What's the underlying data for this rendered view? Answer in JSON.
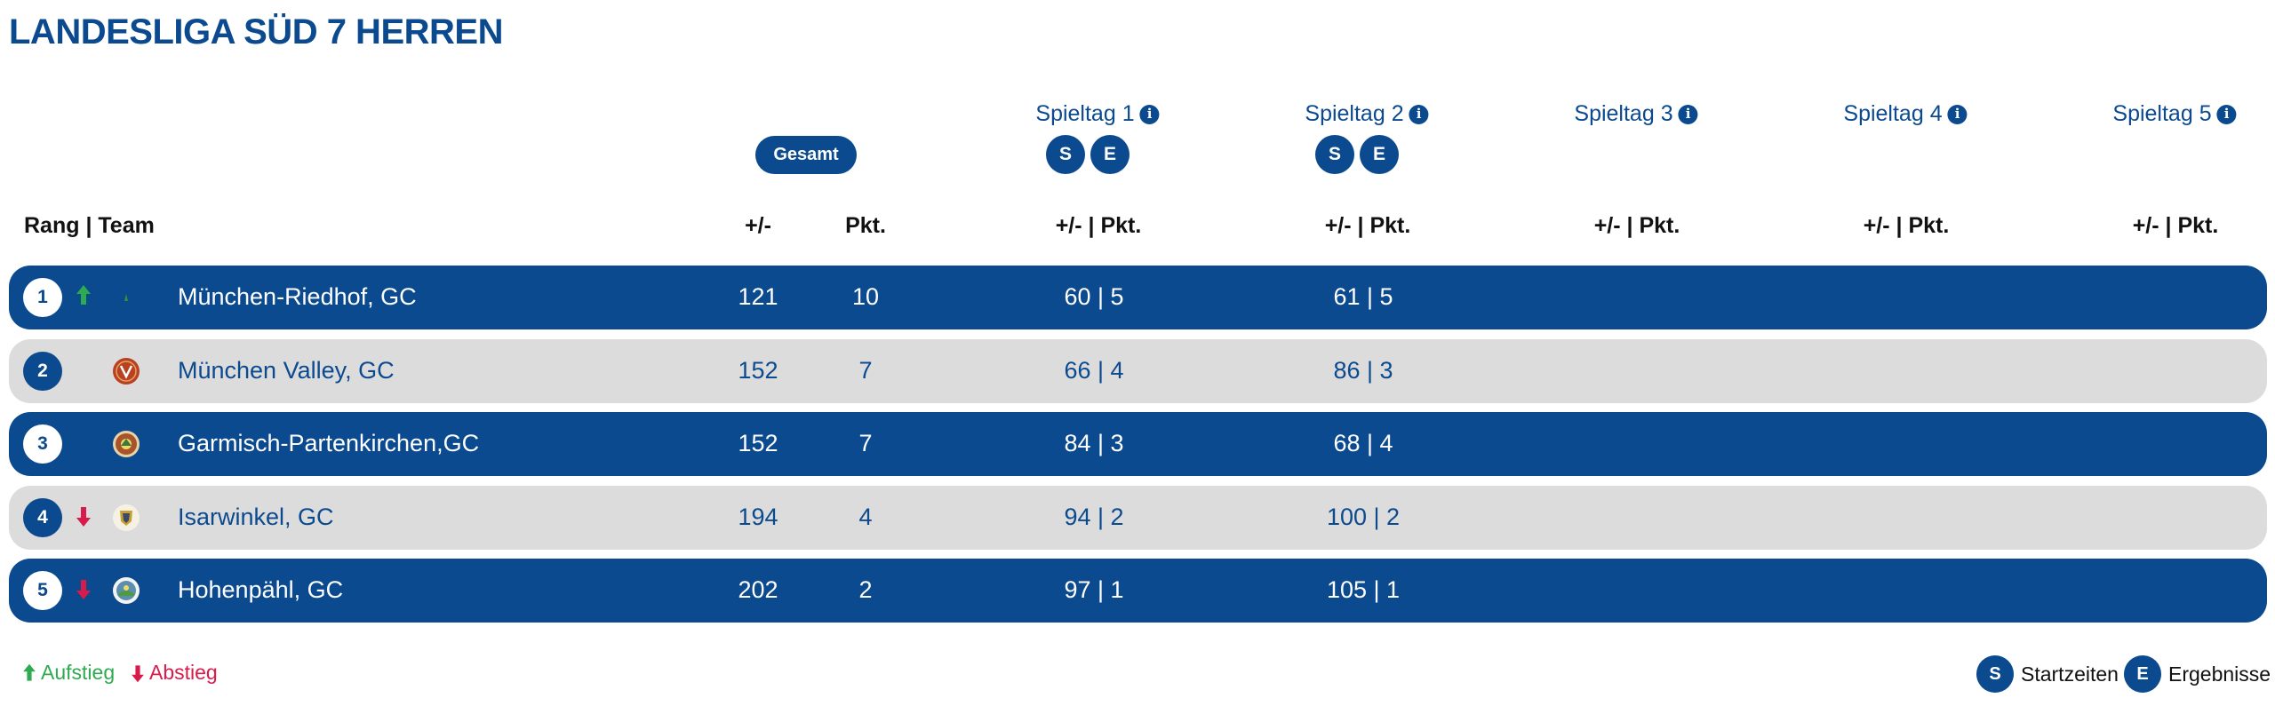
{
  "page": {
    "title": "LANDESLIGA SÜD 7 HERREN"
  },
  "matchdays": [
    {
      "label": "Spieltag 1",
      "has_buttons": true
    },
    {
      "label": "Spieltag 2",
      "has_buttons": true
    },
    {
      "label": "Spieltag 3",
      "has_buttons": false
    },
    {
      "label": "Spieltag 4",
      "has_buttons": false
    },
    {
      "label": "Spieltag 5",
      "has_buttons": false
    }
  ],
  "buttons": {
    "gesamt": "Gesamt",
    "start": "S",
    "results": "E",
    "info": "i"
  },
  "columns": {
    "rank_team": "Rang | Team",
    "diff": "+/-",
    "points": "Pkt.",
    "matchday": "+/- | Pkt."
  },
  "rows": [
    {
      "rank": "1",
      "trend": "up",
      "team": "München-Riedhof, GC",
      "diff": "121",
      "points": "10",
      "md1": "60 | 5",
      "md2": "61 | 5",
      "logo_color": "#3a8f3f"
    },
    {
      "rank": "2",
      "trend": "none",
      "team": "München Valley, GC",
      "diff": "152",
      "points": "7",
      "md1": "66 | 4",
      "md2": "86 | 3",
      "logo_color": "#b8421f"
    },
    {
      "rank": "3",
      "trend": "none",
      "team": "Garmisch-Partenkirchen,GC",
      "diff": "152",
      "points": "7",
      "md1": "84 | 3",
      "md2": "68 | 4",
      "logo_color": "#a8542a"
    },
    {
      "rank": "4",
      "trend": "down",
      "team": "Isarwinkel, GC",
      "diff": "194",
      "points": "4",
      "md1": "94 | 2",
      "md2": "100 | 2",
      "logo_color": "#c9a030"
    },
    {
      "rank": "5",
      "trend": "down",
      "team": "Hohenpähl, GC",
      "diff": "202",
      "points": "2",
      "md1": "97 | 1",
      "md2": "105 | 1",
      "logo_color": "#5a8fb0"
    }
  ],
  "legend": {
    "promotion": "Aufstieg",
    "relegation": "Abstieg",
    "start_times": "Startzeiten",
    "results": "Ergebnisse"
  },
  "colors": {
    "primary": "#0b4a8f",
    "row_alt": "#dcdcdc",
    "up": "#2eaa50",
    "down": "#d81b4a"
  }
}
